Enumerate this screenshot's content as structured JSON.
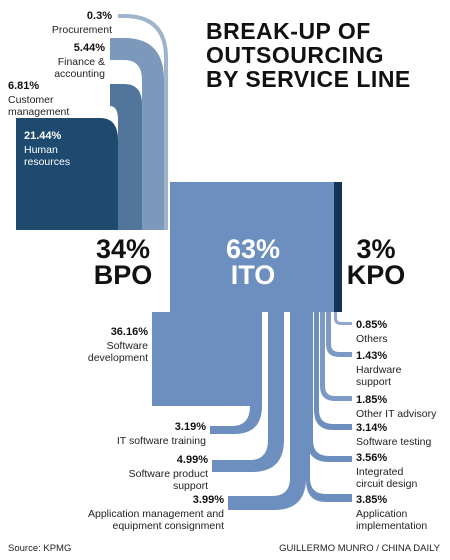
{
  "title": [
    "BREAK-UP OF",
    "OUTSOURCING",
    "BY SERVICE LINE"
  ],
  "colors": {
    "bpo": "#1d4a6e",
    "ito": "#6c8fbf",
    "kpo": "#143359",
    "bpo_shades": [
      "#9fb3cb",
      "#7c98ba",
      "#52759c",
      "#1d4a6e"
    ]
  },
  "main": [
    {
      "key": "bpo",
      "percent": "34%",
      "name": "BPO"
    },
    {
      "key": "ito",
      "percent": "63%",
      "name": "ITO"
    },
    {
      "key": "kpo",
      "percent": "3%",
      "name": "KPO"
    }
  ],
  "bpo_items": [
    {
      "percent": "0.3%",
      "label": [
        "Procurement"
      ]
    },
    {
      "percent": "5.44%",
      "label": [
        "Finance &",
        "accounting"
      ]
    },
    {
      "percent": "6.81%",
      "label": [
        "Customer",
        "management"
      ]
    },
    {
      "percent": "21.44%",
      "label": [
        "Human",
        "resources"
      ]
    }
  ],
  "ito_left_items": [
    {
      "percent": "36.16%",
      "label": [
        "Software",
        "development"
      ]
    },
    {
      "percent": "3.19%",
      "label": [
        "IT software training"
      ]
    },
    {
      "percent": "4.99%",
      "label": [
        "Software product",
        "support"
      ]
    },
    {
      "percent": "3.99%",
      "label": [
        "Application management and",
        "equipment consignment"
      ]
    }
  ],
  "ito_right_items": [
    {
      "percent": "0.85%",
      "label": [
        "Others"
      ]
    },
    {
      "percent": "1.43%",
      "label": [
        "Hardware",
        "support"
      ]
    },
    {
      "percent": "1.85%",
      "label": [
        "Other IT advisory"
      ]
    },
    {
      "percent": "3.14%",
      "label": [
        "Software testing"
      ]
    },
    {
      "percent": "3.56%",
      "label": [
        "Integrated",
        "circuit design"
      ]
    },
    {
      "percent": "3.85%",
      "label": [
        "Application",
        "implementation"
      ]
    }
  ],
  "source": "Source: KPMG",
  "credit": "GUILLERMO MUNRO / CHINA DAILY"
}
